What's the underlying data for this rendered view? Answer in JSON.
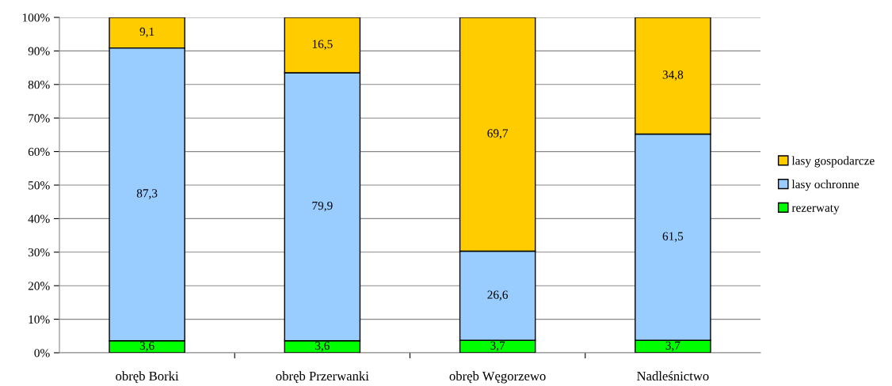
{
  "chart_data": {
    "type": "bar",
    "stacked": true,
    "categories": [
      "obręb Borki",
      "obręb Przerwanki",
      "obręb Węgorzewo",
      "Nadleśnictwo"
    ],
    "series": [
      {
        "name": "rezerwaty",
        "color": "#00ff00",
        "values": [
          3.6,
          3.6,
          3.7,
          3.7
        ],
        "value_labels": [
          "3,6",
          "3,6",
          "3,7",
          "3,7"
        ]
      },
      {
        "name": "lasy ochronne",
        "color": "#99ccff",
        "values": [
          87.3,
          79.9,
          26.6,
          61.5
        ],
        "value_labels": [
          "87,3",
          "79,9",
          "26,6",
          "61,5"
        ]
      },
      {
        "name": "lasy gospodarcze",
        "color": "#ffcc00",
        "values": [
          9.1,
          16.5,
          69.7,
          34.8
        ],
        "value_labels": [
          "9,1",
          "16,5",
          "69,7",
          "34,8"
        ]
      }
    ],
    "ylim": [
      0,
      100
    ],
    "yticks": [
      {
        "value": 0,
        "label": "0%"
      },
      {
        "value": 10,
        "label": "10%"
      },
      {
        "value": 20,
        "label": "20%"
      },
      {
        "value": 30,
        "label": "30%"
      },
      {
        "value": 40,
        "label": "40%"
      },
      {
        "value": 50,
        "label": "50%"
      },
      {
        "value": 60,
        "label": "60%"
      },
      {
        "value": 70,
        "label": "70%"
      },
      {
        "value": 80,
        "label": "80%"
      },
      {
        "value": 90,
        "label": "90%"
      },
      {
        "value": 100,
        "label": "100%"
      }
    ],
    "grid": "y",
    "legend": "right"
  }
}
